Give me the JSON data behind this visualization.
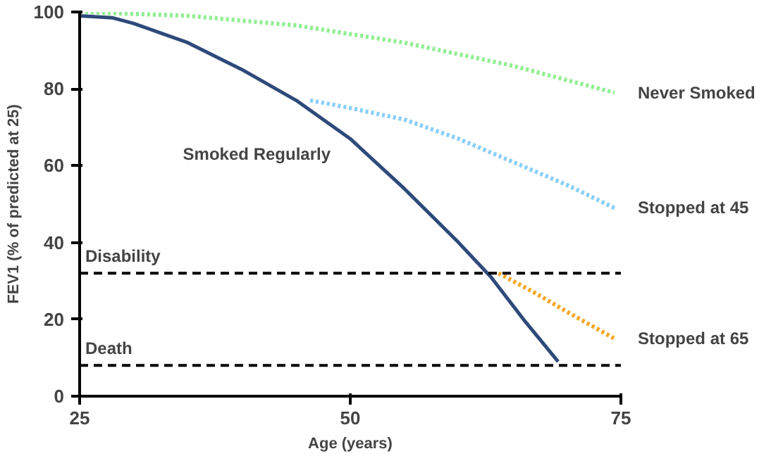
{
  "chart_data": {
    "type": "line",
    "xlabel": "Age (years)",
    "ylabel": "FEV1 (% of predicted at 25)",
    "xlim": [
      25,
      75
    ],
    "ylim": [
      0,
      100
    ],
    "xticks": [
      25,
      50,
      75
    ],
    "yticks": [
      0,
      20,
      40,
      60,
      80,
      100
    ],
    "grid": false,
    "legend": false,
    "marker": "none",
    "series": [
      {
        "name": "Never Smoked",
        "color": "#90ee90",
        "line_style": "dotted",
        "x": [
          25,
          35,
          45,
          55,
          65,
          74.4
        ],
        "values": [
          100,
          99,
          96.5,
          92,
          86,
          79
        ]
      },
      {
        "name": "Stopped  at 45",
        "color": "#87cefa",
        "line_style": "dotted",
        "x": [
          46.3,
          50,
          55,
          60,
          65,
          70,
          74.4
        ],
        "values": [
          77,
          75,
          72,
          67,
          61,
          55,
          49
        ]
      },
      {
        "name": "Stopped at 65",
        "color": "#f5a623",
        "line_style": "dotted",
        "x": [
          63.7,
          67,
          70,
          74.4
        ],
        "values": [
          32,
          27,
          22,
          15
        ]
      },
      {
        "name": "Smoked Regularly",
        "color": "#2e4a7a",
        "line_style": "solid",
        "x": [
          25,
          28,
          30,
          35,
          40,
          45,
          50,
          55,
          60,
          63,
          66,
          69.2
        ],
        "values": [
          99,
          98.5,
          97,
          92,
          85,
          77,
          67,
          54,
          40,
          31,
          20,
          9
        ]
      }
    ],
    "ref_lines": [
      {
        "axis": "y",
        "value": 32,
        "label": "Disability",
        "color": "#000000",
        "line_style": "dashed"
      },
      {
        "axis": "y",
        "value": 8,
        "label": "Death",
        "color": "#000000",
        "line_style": "dashed"
      }
    ]
  }
}
